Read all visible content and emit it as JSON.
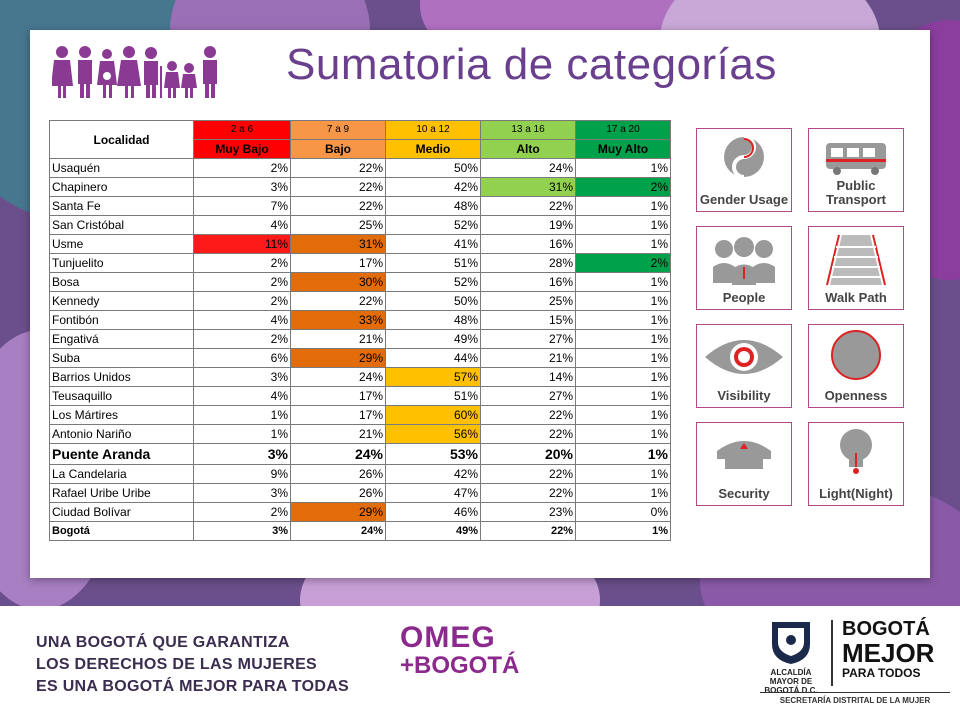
{
  "title": "Sumatoria de categorías",
  "table": {
    "header_locality": "Localidad",
    "ranges": [
      "2 a 6",
      "7 a 9",
      "10 a 12",
      "13 a 16",
      "17 a 20"
    ],
    "levels": [
      "Muy Bajo",
      "Bajo",
      "Medio",
      "Alto",
      "Muy Alto"
    ],
    "rows": [
      {
        "name": "Usaquén",
        "v": [
          "2%",
          "22%",
          "50%",
          "24%",
          "1%"
        ]
      },
      {
        "name": "Chapinero",
        "v": [
          "3%",
          "22%",
          "42%",
          "31%",
          "2%"
        ]
      },
      {
        "name": "Santa Fe",
        "v": [
          "7%",
          "22%",
          "48%",
          "22%",
          "1%"
        ]
      },
      {
        "name": "San Cristóbal",
        "v": [
          "4%",
          "25%",
          "52%",
          "19%",
          "1%"
        ]
      },
      {
        "name": "Usme",
        "v": [
          "11%",
          "31%",
          "41%",
          "16%",
          "1%"
        ]
      },
      {
        "name": "Tunjuelito",
        "v": [
          "2%",
          "17%",
          "51%",
          "28%",
          "2%"
        ]
      },
      {
        "name": "Bosa",
        "v": [
          "2%",
          "30%",
          "52%",
          "16%",
          "1%"
        ]
      },
      {
        "name": "Kennedy",
        "v": [
          "2%",
          "22%",
          "50%",
          "25%",
          "1%"
        ]
      },
      {
        "name": "Fontibón",
        "v": [
          "4%",
          "33%",
          "48%",
          "15%",
          "1%"
        ]
      },
      {
        "name": "Engativá",
        "v": [
          "2%",
          "21%",
          "49%",
          "27%",
          "1%"
        ]
      },
      {
        "name": "Suba",
        "v": [
          "6%",
          "29%",
          "44%",
          "21%",
          "1%"
        ]
      },
      {
        "name": "Barrios Unidos",
        "v": [
          "3%",
          "24%",
          "57%",
          "14%",
          "1%"
        ]
      },
      {
        "name": "Teusaquillo",
        "v": [
          "4%",
          "17%",
          "51%",
          "27%",
          "1%"
        ]
      },
      {
        "name": "Los Mártires",
        "v": [
          "1%",
          "17%",
          "60%",
          "22%",
          "1%"
        ]
      },
      {
        "name": "Antonio Nariño",
        "v": [
          "1%",
          "21%",
          "56%",
          "22%",
          "1%"
        ]
      },
      {
        "name": "Puente Aranda",
        "v": [
          "3%",
          "24%",
          "53%",
          "20%",
          "1%"
        ]
      },
      {
        "name": "La Candelaria",
        "v": [
          "9%",
          "26%",
          "42%",
          "22%",
          "1%"
        ]
      },
      {
        "name": "Rafael Uribe Uribe",
        "v": [
          "3%",
          "26%",
          "47%",
          "22%",
          "1%"
        ]
      },
      {
        "name": "Ciudad Bolívar",
        "v": [
          "2%",
          "29%",
          "46%",
          "23%",
          "0%"
        ]
      },
      {
        "name": "Bogotá",
        "v": [
          "3%",
          "24%",
          "49%",
          "22%",
          "1%"
        ]
      }
    ]
  },
  "colors": {
    "range_header": [
      "#ff0000",
      "#f79646",
      "#ffc000",
      "#92d050",
      "#00a14b"
    ],
    "level_header": [
      "#ff0000",
      "#f79646",
      "#ffc000",
      "#92d050",
      "#00a14b"
    ],
    "title": "#6a3f8e",
    "background": "#6b4f8c"
  },
  "icons": [
    {
      "icon": "gender-usage-icon",
      "label": "Gender Usage"
    },
    {
      "icon": "public-transport-icon",
      "label": "Public Transport"
    },
    {
      "icon": "people-icon",
      "label": "People"
    },
    {
      "icon": "walk-path-icon",
      "label": "Walk Path"
    },
    {
      "icon": "visibility-icon",
      "label": "Visibility"
    },
    {
      "icon": "openness-icon",
      "label": "Openness"
    },
    {
      "icon": "security-icon",
      "label": "Security"
    },
    {
      "icon": "light-night-icon",
      "label": "Light(Night)"
    }
  ],
  "footer": {
    "slogan": [
      "UNA BOGOTÁ QUE GARANTIZA",
      "LOS DERECHOS DE LAS MUJERES",
      "ES UNA BOGOTÁ MEJOR PARA TODAS"
    ],
    "omeg_line1": "OMEG",
    "omeg_line2": "+BOGOTÁ",
    "alcaldia": "ALCALDÍA MAYOR DE BOGOTÁ D.C.",
    "bogota_logo_1": "BOGOTÁ",
    "bogota_logo_2": "MEJOR",
    "bogota_logo_3": "PARA TODOS",
    "secretaria": "SECRETARÍA DISTRITAL DE LA MUJER"
  }
}
